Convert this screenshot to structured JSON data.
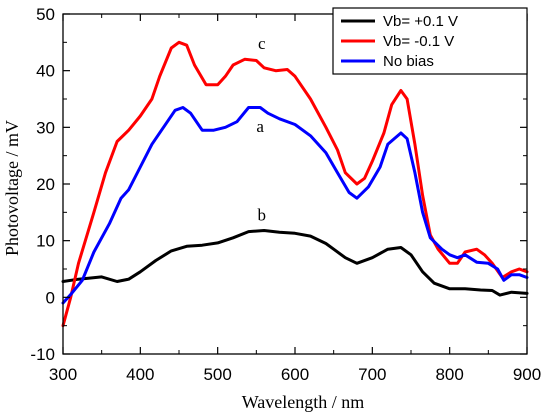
{
  "chart_data": {
    "type": "line",
    "title": "",
    "xlabel": "Wavelength / nm",
    "ylabel": "Photovoltage / mV",
    "xlim": [
      300,
      900
    ],
    "ylim": [
      -10,
      50
    ],
    "xticks": [
      300,
      400,
      500,
      600,
      700,
      800,
      900
    ],
    "yticks": [
      -10,
      0,
      10,
      20,
      30,
      40,
      50
    ],
    "grid": false,
    "legend_position": "top-right",
    "series": [
      {
        "name": "Vb= +0.1 V",
        "color": "#000000",
        "points": [
          [
            300,
            2.8
          ],
          [
            320,
            3.2
          ],
          [
            350,
            3.6
          ],
          [
            370,
            2.8
          ],
          [
            385,
            3.2
          ],
          [
            400,
            4.5
          ],
          [
            420,
            6.5
          ],
          [
            440,
            8.2
          ],
          [
            460,
            9.0
          ],
          [
            480,
            9.2
          ],
          [
            500,
            9.6
          ],
          [
            520,
            10.5
          ],
          [
            540,
            11.6
          ],
          [
            560,
            11.8
          ],
          [
            580,
            11.5
          ],
          [
            600,
            11.3
          ],
          [
            620,
            10.8
          ],
          [
            640,
            9.5
          ],
          [
            650,
            8.5
          ],
          [
            665,
            7.0
          ],
          [
            680,
            6.0
          ],
          [
            700,
            7.0
          ],
          [
            720,
            8.5
          ],
          [
            737,
            8.8
          ],
          [
            750,
            7.5
          ],
          [
            765,
            4.5
          ],
          [
            780,
            2.5
          ],
          [
            800,
            1.5
          ],
          [
            820,
            1.5
          ],
          [
            840,
            1.3
          ],
          [
            855,
            1.2
          ],
          [
            865,
            0.4
          ],
          [
            880,
            0.9
          ],
          [
            900,
            0.7
          ]
        ]
      },
      {
        "name": "Vb= -0.1 V",
        "color": "#ff0000",
        "points": [
          [
            300,
            -5
          ],
          [
            310,
            0
          ],
          [
            320,
            6
          ],
          [
            340,
            15
          ],
          [
            355,
            22
          ],
          [
            370,
            27.5
          ],
          [
            385,
            29.5
          ],
          [
            400,
            32
          ],
          [
            415,
            35
          ],
          [
            425,
            39
          ],
          [
            440,
            44
          ],
          [
            450,
            45
          ],
          [
            460,
            44.5
          ],
          [
            470,
            41
          ],
          [
            485,
            37.5
          ],
          [
            500,
            37.5
          ],
          [
            510,
            39
          ],
          [
            520,
            41
          ],
          [
            535,
            42
          ],
          [
            550,
            41.8
          ],
          [
            560,
            40.5
          ],
          [
            575,
            40
          ],
          [
            590,
            40.2
          ],
          [
            600,
            39
          ],
          [
            620,
            35
          ],
          [
            640,
            30
          ],
          [
            655,
            26
          ],
          [
            665,
            22
          ],
          [
            680,
            20
          ],
          [
            690,
            21
          ],
          [
            700,
            24
          ],
          [
            715,
            29
          ],
          [
            725,
            34
          ],
          [
            737,
            36.5
          ],
          [
            745,
            35
          ],
          [
            755,
            27
          ],
          [
            765,
            18
          ],
          [
            775,
            11
          ],
          [
            785,
            8.5
          ],
          [
            800,
            6
          ],
          [
            810,
            6
          ],
          [
            820,
            8
          ],
          [
            835,
            8.5
          ],
          [
            845,
            7.5
          ],
          [
            855,
            6
          ],
          [
            868,
            3.5
          ],
          [
            880,
            4.5
          ],
          [
            890,
            5
          ],
          [
            900,
            4.5
          ]
        ]
      },
      {
        "name": "No bias",
        "color": "#0000ff",
        "points": [
          [
            300,
            -1
          ],
          [
            310,
            0.5
          ],
          [
            325,
            3
          ],
          [
            340,
            8
          ],
          [
            360,
            13
          ],
          [
            375,
            17.5
          ],
          [
            385,
            19
          ],
          [
            400,
            23
          ],
          [
            415,
            27
          ],
          [
            430,
            30
          ],
          [
            445,
            33
          ],
          [
            455,
            33.5
          ],
          [
            465,
            32.5
          ],
          [
            480,
            29.5
          ],
          [
            495,
            29.5
          ],
          [
            510,
            30
          ],
          [
            525,
            31
          ],
          [
            540,
            33.5
          ],
          [
            555,
            33.5
          ],
          [
            565,
            32.5
          ],
          [
            580,
            31.5
          ],
          [
            600,
            30.5
          ],
          [
            620,
            28.5
          ],
          [
            640,
            25.5
          ],
          [
            655,
            22
          ],
          [
            670,
            18.5
          ],
          [
            680,
            17.5
          ],
          [
            695,
            19.5
          ],
          [
            710,
            23
          ],
          [
            720,
            27
          ],
          [
            737,
            29
          ],
          [
            745,
            28
          ],
          [
            755,
            22
          ],
          [
            765,
            15
          ],
          [
            775,
            10.5
          ],
          [
            790,
            8.5
          ],
          [
            800,
            7.5
          ],
          [
            810,
            7
          ],
          [
            820,
            7.5
          ],
          [
            835,
            6.2
          ],
          [
            850,
            6
          ],
          [
            862,
            5
          ],
          [
            870,
            3
          ],
          [
            880,
            4
          ],
          [
            890,
            4
          ],
          [
            900,
            3.5
          ]
        ]
      }
    ],
    "annotations": [
      {
        "text": "c",
        "x": 557,
        "y": 43.8
      },
      {
        "text": "a",
        "x": 555,
        "y": 29.2
      },
      {
        "text": "b",
        "x": 557,
        "y": 13.6
      }
    ]
  }
}
